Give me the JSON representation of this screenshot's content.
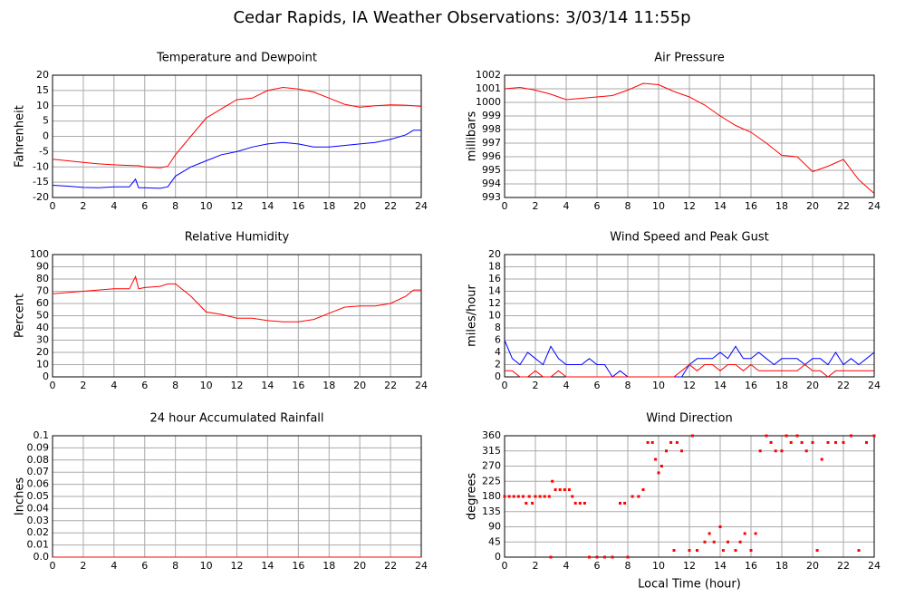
{
  "page_title": "Cedar Rapids, IA Weather Observations: 3/03/14 11:55p",
  "chart_data": [
    {
      "type": "line",
      "title": "Temperature and Dewpoint",
      "ylabel": "Fahrenheit",
      "xlim": [
        0,
        24
      ],
      "xticks": [
        0,
        2,
        4,
        6,
        8,
        10,
        12,
        14,
        16,
        18,
        20,
        22,
        24
      ],
      "ylim": [
        -20,
        20
      ],
      "yticks": [
        -20,
        -15,
        -10,
        -5,
        0,
        5,
        10,
        15,
        20
      ],
      "grid": true,
      "series": [
        {
          "color": "#ff0000",
          "x": [
            0,
            1,
            2,
            3,
            4,
            5,
            5.4,
            5.6,
            6,
            7,
            7.5,
            8,
            9,
            10,
            11,
            12,
            13,
            14,
            15,
            16,
            17,
            18,
            19,
            20,
            21,
            22,
            23,
            23.5,
            24
          ],
          "values": [
            -7.5,
            -8,
            -8.5,
            -9,
            -9.3,
            -9.5,
            -9.6,
            -9.6,
            -10,
            -10.3,
            -9.8,
            -6,
            0,
            6,
            9,
            12,
            12.5,
            15,
            16,
            15.5,
            14.5,
            12.5,
            10.5,
            9.5,
            10,
            10.3,
            10.2,
            10,
            9.8
          ]
        },
        {
          "color": "#0000ff",
          "x": [
            0,
            1,
            2,
            3,
            4,
            5,
            5.4,
            5.6,
            6,
            7,
            7.5,
            8,
            9,
            10,
            11,
            12,
            13,
            14,
            15,
            16,
            17,
            18,
            19,
            20,
            21,
            22,
            23,
            23.5,
            24
          ],
          "values": [
            -16,
            -16.3,
            -16.7,
            -16.8,
            -16.5,
            -16.5,
            -14,
            -16.8,
            -16.8,
            -17,
            -16.5,
            -13,
            -10,
            -8,
            -6,
            -5,
            -3.5,
            -2.5,
            -2,
            -2.5,
            -3.5,
            -3.5,
            -3,
            -2.5,
            -2,
            -1,
            0.5,
            2,
            2
          ]
        }
      ]
    },
    {
      "type": "line",
      "title": "Air Pressure",
      "ylabel": "millibars",
      "xlim": [
        0,
        24
      ],
      "xticks": [
        0,
        2,
        4,
        6,
        8,
        10,
        12,
        14,
        16,
        18,
        20,
        22,
        24
      ],
      "ylim": [
        993,
        1002
      ],
      "yticks": [
        993,
        994,
        995,
        996,
        997,
        998,
        999,
        1000,
        1001,
        1002
      ],
      "grid": true,
      "series": [
        {
          "color": "#ff0000",
          "x": [
            0,
            1,
            2,
            3,
            4,
            5,
            6,
            7,
            8,
            9,
            10,
            11,
            12,
            13,
            14,
            15,
            16,
            17,
            18,
            19,
            20,
            21,
            22,
            23,
            24
          ],
          "values": [
            1001,
            1001.1,
            1000.9,
            1000.6,
            1000.2,
            1000.3,
            1000.4,
            1000.5,
            1000.9,
            1001.4,
            1001.3,
            1000.8,
            1000.4,
            999.8,
            999.0,
            998.3,
            997.8,
            997.0,
            996.1,
            996.0,
            994.9,
            995.3,
            995.8,
            994.3,
            993.3
          ]
        }
      ]
    },
    {
      "type": "line",
      "title": "Relative Humidity",
      "ylabel": "Percent",
      "xlim": [
        0,
        24
      ],
      "xticks": [
        0,
        2,
        4,
        6,
        8,
        10,
        12,
        14,
        16,
        18,
        20,
        22,
        24
      ],
      "ylim": [
        0,
        100
      ],
      "yticks": [
        0,
        10,
        20,
        30,
        40,
        50,
        60,
        70,
        80,
        90,
        100
      ],
      "grid": true,
      "series": [
        {
          "color": "#ff0000",
          "x": [
            0,
            1,
            2,
            3,
            4,
            5,
            5.4,
            5.6,
            6,
            7,
            7.5,
            8,
            9,
            10,
            11,
            12,
            13,
            14,
            15,
            16,
            17,
            18,
            19,
            20,
            21,
            22,
            23,
            23.5,
            24
          ],
          "values": [
            68,
            69,
            70,
            71,
            72,
            72,
            82,
            72,
            73,
            74,
            76,
            76,
            66,
            53,
            51,
            48,
            48,
            46,
            45,
            45,
            47,
            52,
            57,
            58,
            58,
            60,
            66,
            71,
            71
          ]
        }
      ]
    },
    {
      "type": "line",
      "title": "Wind Speed and Peak Gust",
      "ylabel": "miles/hour",
      "xlim": [
        0,
        24
      ],
      "xticks": [
        0,
        2,
        4,
        6,
        8,
        10,
        12,
        14,
        16,
        18,
        20,
        22,
        24
      ],
      "ylim": [
        0,
        20
      ],
      "yticks": [
        0,
        2,
        4,
        6,
        8,
        10,
        12,
        14,
        16,
        18,
        20
      ],
      "grid": true,
      "series": [
        {
          "color": "#0000ff",
          "x": [
            0,
            0.5,
            1,
            1.5,
            2,
            2.5,
            3,
            3.5,
            4,
            4.5,
            5,
            5.5,
            6,
            6.5,
            7,
            7.5,
            8,
            8.5,
            9,
            9.5,
            10,
            10.5,
            11,
            11.5,
            12,
            12.5,
            13,
            13.5,
            14,
            14.5,
            15,
            15.5,
            16,
            16.5,
            17,
            17.5,
            18,
            18.5,
            19,
            19.5,
            20,
            20.5,
            21,
            21.5,
            22,
            22.5,
            23,
            23.5,
            24
          ],
          "values": [
            6,
            3,
            2,
            4,
            3,
            2,
            5,
            3,
            2,
            2,
            2,
            3,
            2,
            2,
            0,
            1,
            0,
            0,
            0,
            0,
            0,
            0,
            0,
            0,
            2,
            3,
            3,
            3,
            4,
            3,
            5,
            3,
            3,
            4,
            3,
            2,
            3,
            3,
            3,
            2,
            3,
            3,
            2,
            4,
            2,
            3,
            2,
            3,
            4
          ]
        },
        {
          "color": "#ff0000",
          "x": [
            0,
            0.5,
            1,
            1.5,
            2,
            2.5,
            3,
            3.5,
            4,
            4.5,
            5,
            5.5,
            6,
            6.5,
            7,
            7.5,
            8,
            8.5,
            9,
            9.5,
            10,
            10.5,
            11,
            11.5,
            12,
            12.5,
            13,
            13.5,
            14,
            14.5,
            15,
            15.5,
            16,
            16.5,
            17,
            17.5,
            18,
            18.5,
            19,
            19.5,
            20,
            20.5,
            21,
            21.5,
            22,
            22.5,
            23,
            23.5,
            24
          ],
          "values": [
            1,
            1,
            0,
            0,
            1,
            0,
            0,
            1,
            0,
            0,
            0,
            0,
            0,
            0,
            0,
            0,
            0,
            0,
            0,
            0,
            0,
            0,
            0,
            1,
            2,
            1,
            2,
            2,
            1,
            2,
            2,
            1,
            2,
            1,
            1,
            1,
            1,
            1,
            1,
            2,
            1,
            1,
            0,
            1,
            1,
            1,
            1,
            1,
            1
          ]
        }
      ]
    },
    {
      "type": "line",
      "title": "24 hour Accumulated Rainfall",
      "ylabel": "Inches",
      "xlim": [
        0,
        24
      ],
      "xticks": [
        0,
        2,
        4,
        6,
        8,
        10,
        12,
        14,
        16,
        18,
        20,
        22,
        24
      ],
      "ylim": [
        0,
        0.1
      ],
      "yticks": [
        {
          "value": 0,
          "label": "0.0"
        },
        0.01,
        0.02,
        0.03,
        0.04,
        0.05,
        0.06,
        0.07,
        0.08,
        0.09,
        0.1
      ],
      "grid": true,
      "series": [
        {
          "color": "#ff0000",
          "x": [
            0,
            24
          ],
          "values": [
            0,
            0
          ]
        }
      ]
    },
    {
      "type": "scatter",
      "title": "Wind Direction",
      "ylabel": "degrees",
      "xlabel": "Local Time (hour)",
      "xlim": [
        0,
        24
      ],
      "xticks": [
        0,
        2,
        4,
        6,
        8,
        10,
        12,
        14,
        16,
        18,
        20,
        22,
        24
      ],
      "ylim": [
        0,
        360
      ],
      "yticks": [
        0,
        45,
        90,
        135,
        180,
        225,
        270,
        315,
        360
      ],
      "grid": true,
      "series": [
        {
          "color": "#ff0000",
          "x": [
            0,
            0.3,
            0.6,
            0.9,
            1.2,
            1.4,
            1.6,
            1.8,
            2,
            2.3,
            2.6,
            2.9,
            3,
            3.1,
            3.3,
            3.6,
            3.9,
            4.2,
            4.4,
            4.6,
            4.9,
            5.2,
            5.5,
            6,
            6.5,
            7,
            7.5,
            7.8,
            8,
            8.3,
            8.7,
            9,
            9.3,
            9.6,
            9.8,
            10,
            10.2,
            10.5,
            10.8,
            11,
            11.2,
            11.5,
            12,
            12.2,
            12.5,
            13,
            13.3,
            13.6,
            14,
            14.2,
            14.5,
            15,
            15.3,
            15.6,
            16,
            16.3,
            16.6,
            17,
            17.3,
            17.6,
            18,
            18.3,
            18.6,
            19,
            19.3,
            19.6,
            20,
            20.3,
            20.6,
            21,
            21.5,
            22,
            22.5,
            23,
            23.5,
            24
          ],
          "values": [
            180,
            180,
            180,
            180,
            180,
            160,
            180,
            160,
            180,
            180,
            180,
            180,
            0,
            225,
            200,
            200,
            200,
            200,
            180,
            160,
            160,
            160,
            0,
            0,
            0,
            0,
            160,
            160,
            0,
            180,
            180,
            200,
            340,
            340,
            290,
            250,
            270,
            315,
            340,
            20,
            340,
            315,
            20,
            360,
            20,
            45,
            70,
            45,
            90,
            20,
            45,
            20,
            45,
            70,
            20,
            70,
            315,
            360,
            340,
            315,
            315,
            360,
            340,
            360,
            340,
            315,
            340,
            20,
            290,
            340,
            340,
            340,
            360,
            20,
            340,
            360
          ]
        }
      ]
    }
  ]
}
